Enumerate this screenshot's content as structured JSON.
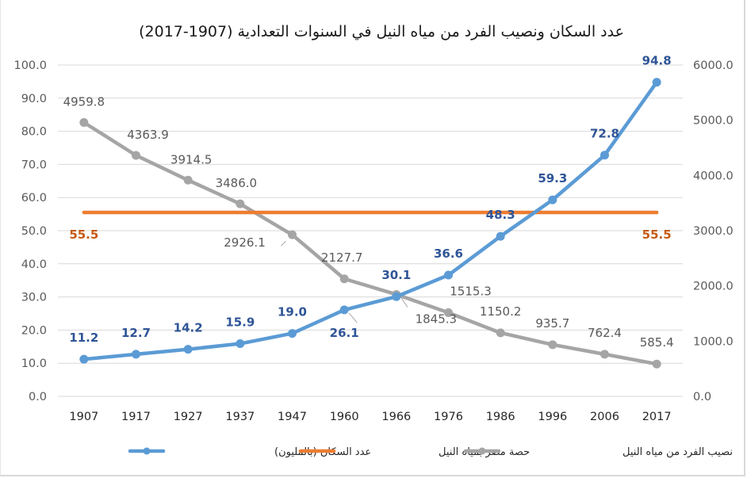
{
  "chart_data": {
    "type": "line",
    "title": "عدد السكان ونصيب الفرد من مياه النيل في السنوات التعدادية (1907-2017)",
    "categories": [
      "1907",
      "1917",
      "1927",
      "1937",
      "1947",
      "1960",
      "1966",
      "1976",
      "1986",
      "1996",
      "2006",
      "2017"
    ],
    "left_axis": {
      "min": 0,
      "max": 100,
      "step": 10,
      "ticks": [
        "0.0",
        "10.0",
        "20.0",
        "30.0",
        "40.0",
        "50.0",
        "60.0",
        "70.0",
        "80.0",
        "90.0",
        "100.0"
      ]
    },
    "right_axis": {
      "min": 0,
      "max": 6000,
      "step": 1000,
      "ticks": [
        "0.0",
        "1000.0",
        "2000.0",
        "3000.0",
        "4000.0",
        "5000.0",
        "6000.0"
      ]
    },
    "grid": true,
    "legend_position": "bottom",
    "series": [
      {
        "name": "عدد السكان (بالمليون)",
        "axis": "left",
        "color": "#5b9bd5",
        "label_color": "#2f5597",
        "markers": true,
        "values": [
          11.2,
          12.7,
          14.2,
          15.9,
          19.0,
          26.1,
          30.1,
          36.6,
          48.3,
          59.3,
          72.8,
          94.8
        ],
        "labels": [
          "11.2",
          "12.7",
          "14.2",
          "15.9",
          "19.0",
          "26.1",
          "30.1",
          "36.6",
          "48.3",
          "59.3",
          "72.8",
          "94.8"
        ]
      },
      {
        "name": "حصة مصر بمياه النيل",
        "axis": "left",
        "color": "#ed7d31",
        "label_color": "#c55a11",
        "markers": false,
        "values": [
          55.5,
          55.5,
          55.5,
          55.5,
          55.5,
          55.5,
          55.5,
          55.5,
          55.5,
          55.5,
          55.5,
          55.5
        ],
        "labels": [
          "55.5",
          "",
          "",
          "",
          "",
          "",
          "",
          "",
          "",
          "",
          "",
          "55.5"
        ]
      },
      {
        "name": "نصيب الفرد من مياه النيل",
        "axis": "right",
        "color": "#a5a5a5",
        "label_color": "#595959",
        "markers": true,
        "values": [
          4959.8,
          4363.9,
          3914.5,
          3486.0,
          2926.1,
          2127.7,
          1845.3,
          1515.3,
          1150.2,
          935.7,
          762.4,
          585.4
        ],
        "labels": [
          "4959.8",
          "4363.9",
          "3914.5",
          "3486.0",
          "2926.1",
          "2127.7",
          "1845.3",
          "1515.3",
          "1150.2",
          "935.7",
          "762.4",
          "585.4"
        ]
      }
    ]
  }
}
